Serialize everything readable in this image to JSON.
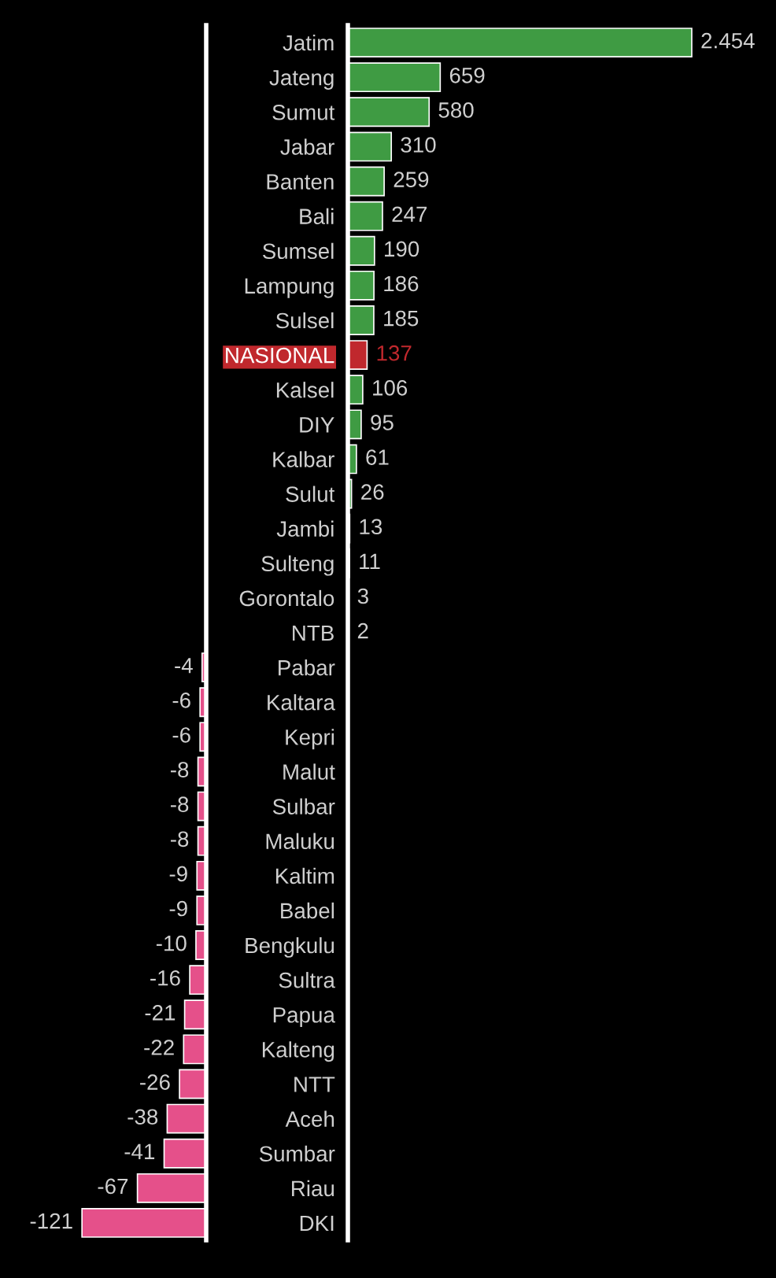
{
  "chart_data": [
    {
      "type": "bar",
      "orientation": "horizontal",
      "color": "#3f9b43",
      "categories": [
        "Jatim",
        "Jateng",
        "Sumut",
        "Jabar",
        "Banten",
        "Bali",
        "Sumsel",
        "Lampung",
        "Sulsel",
        "NASIONAL",
        "Kalsel",
        "DIY",
        "Kalbar",
        "Sulut",
        "Jambi",
        "Sulteng",
        "Gorontalo",
        "NTB"
      ],
      "values": [
        2454,
        659,
        580,
        310,
        259,
        247,
        190,
        186,
        185,
        137,
        106,
        95,
        61,
        26,
        13,
        11,
        3,
        2
      ],
      "colors": [
        "#3f9b43",
        "#3f9b43",
        "#3f9b43",
        "#3f9b43",
        "#3f9b43",
        "#3f9b43",
        "#3f9b43",
        "#3f9b43",
        "#3f9b43",
        "#c0282d",
        "#3f9b43",
        "#3f9b43",
        "#3f9b43",
        "#3f9b43",
        "#3f9b43",
        "#3f9b43",
        "#3f9b43",
        "#3f9b43"
      ],
      "value_labels": [
        "2.454",
        "659",
        "580",
        "310",
        "259",
        "247",
        "190",
        "186",
        "185",
        "137",
        "106",
        "95",
        "61",
        "26",
        "13",
        "11",
        "3",
        "2"
      ]
    },
    {
      "type": "bar",
      "orientation": "horizontal",
      "color": "#e5508a",
      "categories": [
        "Pabar",
        "Kaltara",
        "Kepri",
        "Malut",
        "Sulbar",
        "Maluku",
        "Kaltim",
        "Babel",
        "Bengkulu",
        "Sultra",
        "Papua",
        "Kalteng",
        "NTT",
        "Aceh",
        "Sumbar",
        "Riau",
        "DKI"
      ],
      "values": [
        -4,
        -6,
        -6,
        -8,
        -8,
        -8,
        -9,
        -9,
        -10,
        -16,
        -21,
        -22,
        -26,
        -38,
        -41,
        -67,
        -121
      ],
      "data_labels": true
    }
  ]
}
